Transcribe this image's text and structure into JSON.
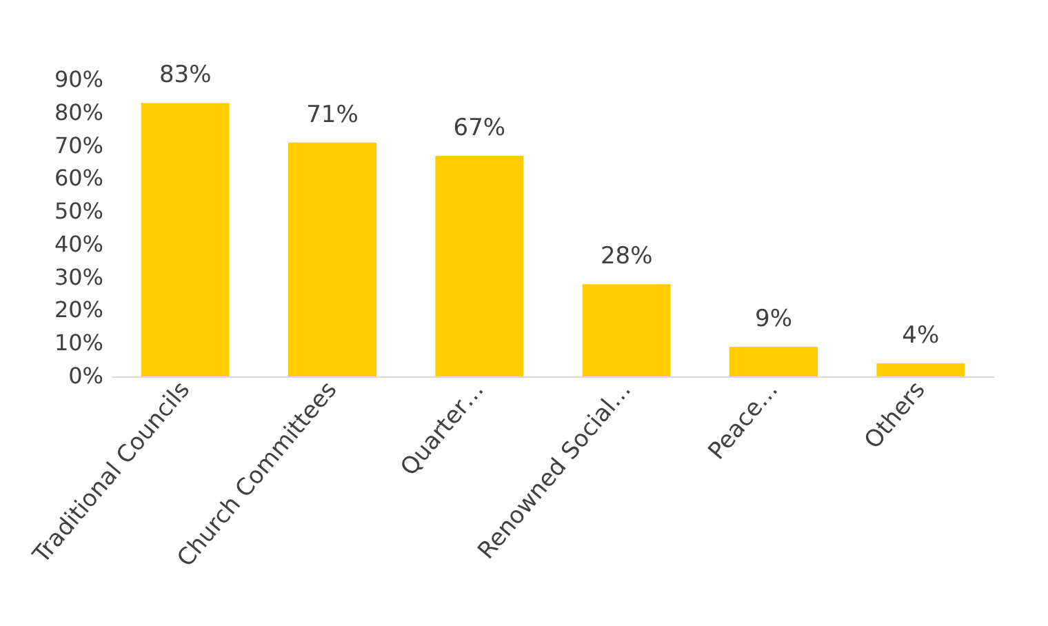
{
  "chart_data": {
    "type": "bar",
    "categories": [
      "Traditional Councils",
      "Church Committees",
      "Quarter…",
      "Renowned Social…",
      "Peace…",
      "Others"
    ],
    "values": [
      83,
      71,
      67,
      28,
      9,
      4
    ],
    "color": "#ffcc00",
    "data_labels": true,
    "grid": false,
    "ylim": [
      0,
      90
    ],
    "yticks": [
      {
        "value": 0,
        "label": "0%"
      },
      {
        "value": 10,
        "label": "10%"
      },
      {
        "value": 20,
        "label": "20%"
      },
      {
        "value": 30,
        "label": "30%"
      },
      {
        "value": 40,
        "label": "40%"
      },
      {
        "value": 50,
        "label": "50%"
      },
      {
        "value": 60,
        "label": "60%"
      },
      {
        "value": 70,
        "label": "70%"
      },
      {
        "value": 80,
        "label": "80%"
      },
      {
        "value": 90,
        "label": "90%"
      }
    ],
    "value_labels": [
      "83%",
      "71%",
      "67%",
      "28%",
      "9%",
      "4%"
    ]
  }
}
